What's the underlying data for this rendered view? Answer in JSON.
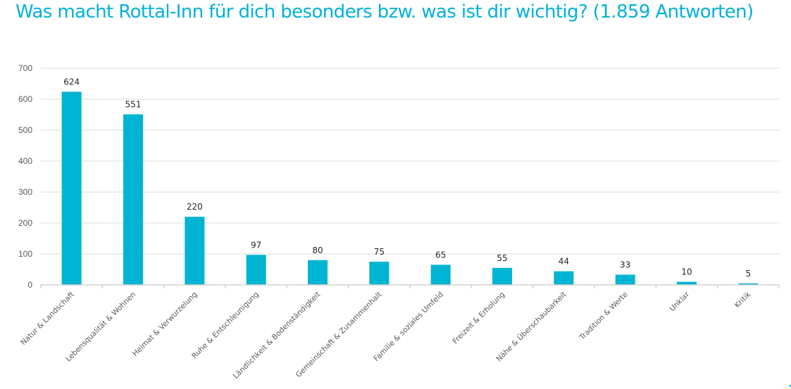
{
  "chart_data": {
    "type": "bar",
    "title": "Was macht Rottal-Inn für dich besonders bzw. was ist dir wichtig? (1.859 Antworten)",
    "xlabel": "",
    "ylabel": "",
    "categories": [
      "Natur & Landschaft",
      "Lebensqualität & Wohnen",
      "Heimat & Verwurzelung",
      "Ruhe & Entschleunigung",
      "Ländlichkeit & Bodenständigkeit",
      "Gemeinschaft & Zusammenhalt",
      "Familie & soziales Umfeld",
      "Freizeit & Erholung",
      "Nähe & Überschaubarkeit",
      "Tradition & Werte",
      "Unklar",
      "Kritik"
    ],
    "values": [
      624,
      551,
      220,
      97,
      80,
      75,
      65,
      55,
      44,
      33,
      10,
      5
    ],
    "data_labels": [
      "624",
      "551",
      "220",
      "97",
      "80",
      "75",
      "65",
      "55",
      "44",
      "33",
      "10",
      "5"
    ],
    "ylim": [
      0,
      700
    ],
    "yticks": [
      0,
      100,
      200,
      300,
      400,
      500,
      600,
      700
    ],
    "ytick_labels": [
      "0",
      "100",
      "200",
      "300",
      "400",
      "500",
      "600",
      "700"
    ],
    "grid": true,
    "legend": "none",
    "bar_color": "#00B4D3",
    "title_color": "#00B2D6"
  }
}
